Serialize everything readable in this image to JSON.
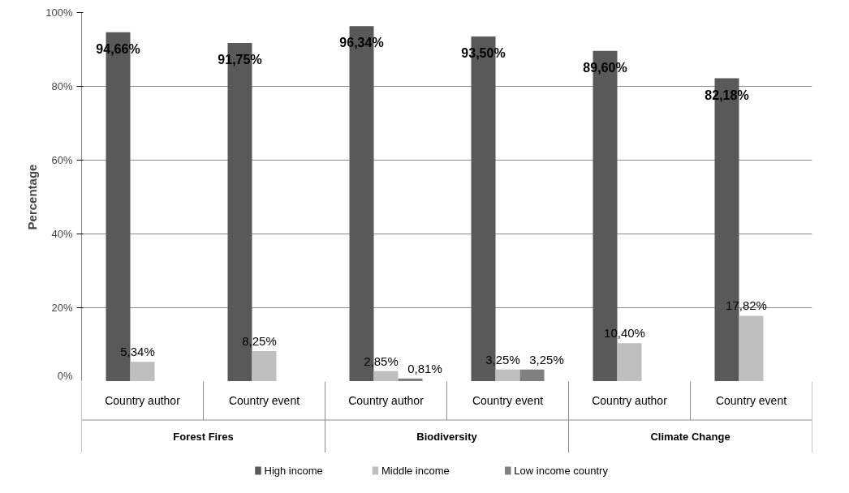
{
  "chart_data": {
    "type": "bar",
    "ylabel": "Percentage",
    "categories": [
      "Country author",
      "Country event",
      "Country author",
      "Country event",
      "Country author",
      "Country event"
    ],
    "annotations": [
      "Forest Fires",
      "Biodiversity",
      "Climate Change"
    ],
    "series": [
      {
        "name": "High income",
        "color": "#595959",
        "values": [
          94.66,
          91.75,
          96.34,
          93.5,
          89.6,
          82.18
        ],
        "value_labels": [
          "94,66%",
          "91,75%",
          "96,34%",
          "93,50%",
          "89,60%",
          "82,18%"
        ]
      },
      {
        "name": "Middle income",
        "color": "#bfbfbf",
        "values": [
          5.34,
          8.25,
          2.85,
          3.25,
          10.4,
          17.82
        ],
        "value_labels": [
          "5,34%",
          "8,25%",
          "2,85%",
          "3,25%",
          "10,40%",
          "17,82%"
        ]
      },
      {
        "name": "Low income country",
        "color": "#808080",
        "values": [
          null,
          null,
          0.81,
          3.25,
          null,
          null
        ],
        "value_labels": [
          null,
          null,
          "0,81%",
          "3,25%",
          null,
          null
        ]
      }
    ],
    "ylim": [
      0,
      100
    ],
    "yticks": [
      {
        "value": 0,
        "label": "0%"
      },
      {
        "value": 20,
        "label": "20%"
      },
      {
        "value": 40,
        "label": "40%"
      },
      {
        "value": 60,
        "label": "60%"
      },
      {
        "value": 80,
        "label": "80%"
      },
      {
        "value": 100,
        "label": "100%"
      }
    ],
    "grid": "y",
    "legend": "bottom"
  }
}
